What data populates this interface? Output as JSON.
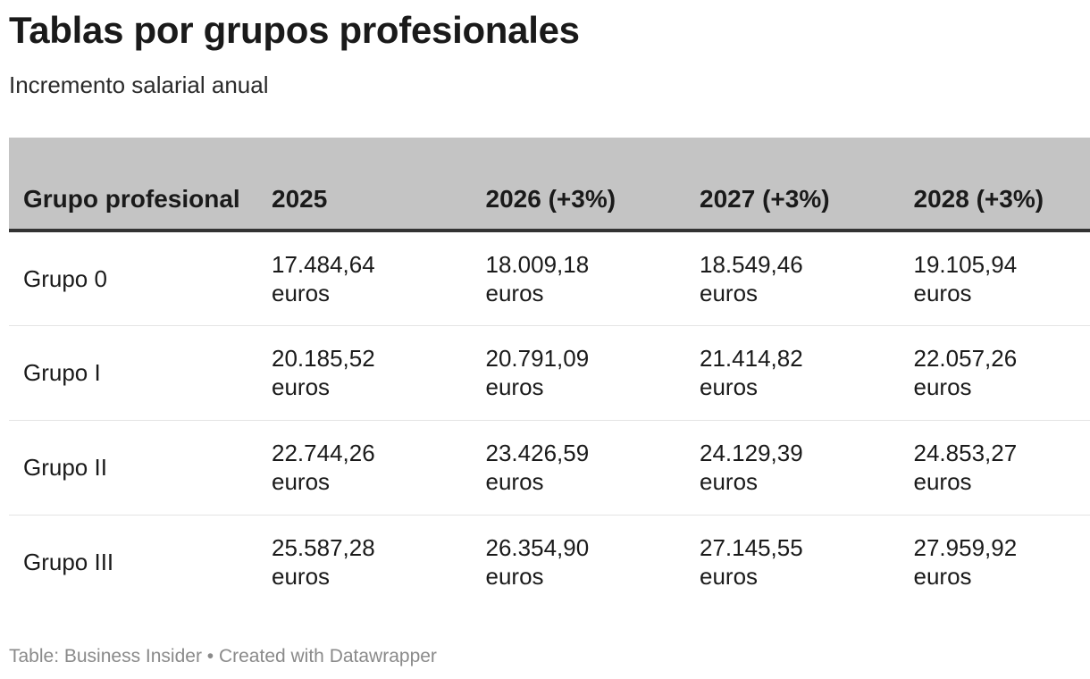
{
  "title": "Tablas por grupos profesionales",
  "subtitle": "Incremento salarial anual",
  "footer": "Table: Business Insider • Created with Datawrapper",
  "colors": {
    "header_bg": "#c4c4c4",
    "header_rule": "#333333",
    "row_divider": "#e4e4e4",
    "footer_text": "#8a8a8a"
  },
  "chart_data": {
    "type": "table",
    "columns": [
      "Grupo profesional",
      "2025",
      "2026 (+3%)",
      "2027 (+3%)",
      "2028 (+3%)"
    ],
    "unit": "euros",
    "rows": [
      {
        "label": "Grupo 0",
        "values": [
          "17.484,64",
          "18.009,18",
          "18.549,46",
          "19.105,94"
        ]
      },
      {
        "label": "Grupo I",
        "values": [
          "20.185,52",
          "20.791,09",
          "21.414,82",
          "22.057,26"
        ]
      },
      {
        "label": "Grupo II",
        "values": [
          "22.744,26",
          "23.426,59",
          "24.129,39",
          "24.853,27"
        ]
      },
      {
        "label": "Grupo III",
        "values": [
          "25.587,28",
          "26.354,90",
          "27.145,55",
          "27.959,92"
        ]
      }
    ]
  }
}
